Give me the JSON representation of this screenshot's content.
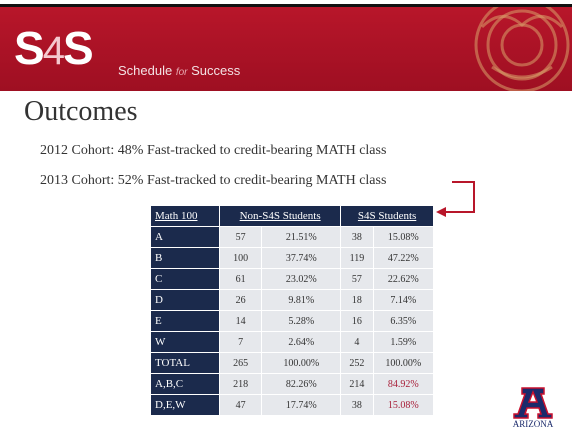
{
  "header": {
    "logo": [
      "S",
      "4",
      "S"
    ],
    "tagline": [
      "Schedule",
      "for",
      "Success"
    ]
  },
  "title": "Outcomes",
  "lines": [
    "2012 Cohort:  48% Fast-tracked to credit-bearing MATH class",
    "2013 Cohort:  52% Fast-tracked to credit-bearing MATH class"
  ],
  "table": {
    "header": [
      "Math 100",
      "Non-S4S Students",
      "S4S Students"
    ],
    "rows": [
      [
        "A",
        "57",
        "21.51%",
        "38",
        "15.08%"
      ],
      [
        "B",
        "100",
        "37.74%",
        "119",
        "47.22%"
      ],
      [
        "C",
        "61",
        "23.02%",
        "57",
        "22.62%"
      ],
      [
        "D",
        "26",
        "9.81%",
        "18",
        "7.14%"
      ],
      [
        "E",
        "14",
        "5.28%",
        "16",
        "6.35%"
      ],
      [
        "W",
        "7",
        "2.64%",
        "4",
        "1.59%"
      ],
      [
        "TOTAL",
        "265",
        "100.00%",
        "252",
        "100.00%"
      ],
      [
        "A,B,C",
        "218",
        "82.26%",
        "214",
        "84.92%"
      ],
      [
        "D,E,W",
        "47",
        "17.74%",
        "38",
        "15.08%"
      ]
    ]
  },
  "footer": {
    "logo_text": "ARIZONA"
  }
}
